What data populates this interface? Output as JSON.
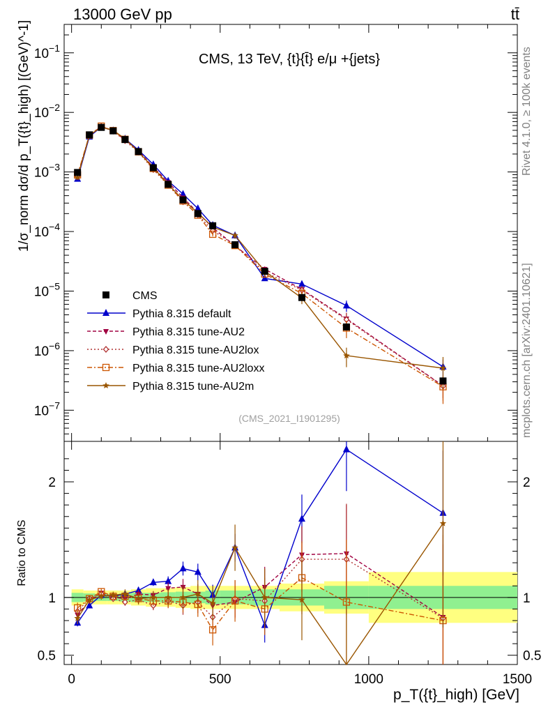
{
  "header": {
    "left": "13000 GeV pp",
    "right": "tt̄"
  },
  "side_labels": {
    "rivet": "Rivet 4.1.0, ≥ 100k events",
    "mcplots": "mcplots.cern.ch [arXiv:2401.10621]"
  },
  "watermark": "(CMS_2021_I1901295)",
  "chart_data": {
    "type": "line",
    "title": "CMS, 13 TeV, {t}{t̄} e/μ +{jets}",
    "xlabel": "p_T({t}_high) [GeV]",
    "ylabel": "1/σ_norm dσ/d p_T({t}_high) [(GeV)^-1]",
    "ratio_ylabel": "Ratio to CMS",
    "yscale": "log",
    "ylim": [
      3e-08,
      0.3
    ],
    "xlim": [
      -25,
      1500
    ],
    "ratio_ylim": [
      0.42,
      2.35
    ],
    "legend_position": "middle-left",
    "x_ticks": [
      0,
      500,
      1000,
      1500
    ],
    "y_ticks": [
      {
        "value": 1e-07,
        "base": "10",
        "exp": "−7"
      },
      {
        "value": 1e-06,
        "base": "10",
        "exp": "−6"
      },
      {
        "value": 1e-05,
        "base": "10",
        "exp": "−5"
      },
      {
        "value": 0.0001,
        "base": "10",
        "exp": "−4"
      },
      {
        "value": 0.001,
        "base": "10",
        "exp": "−3"
      },
      {
        "value": 0.01,
        "base": "10",
        "exp": "−2"
      },
      {
        "value": 0.1,
        "base": "10",
        "exp": "−1"
      }
    ],
    "ratio_ticks": [
      0.5,
      1,
      2
    ],
    "x": [
      20,
      60,
      100,
      140,
      180,
      225,
      275,
      325,
      375,
      425,
      475,
      550,
      650,
      775,
      925,
      1250
    ],
    "x_low": [
      0,
      40,
      80,
      120,
      160,
      200,
      250,
      300,
      350,
      400,
      450,
      500,
      600,
      700,
      850,
      1000
    ],
    "x_high": [
      40,
      80,
      120,
      160,
      200,
      250,
      300,
      350,
      400,
      450,
      500,
      600,
      700,
      850,
      1000,
      1500
    ],
    "data": {
      "name": "CMS",
      "values": [
        0.00098,
        0.0042,
        0.0056,
        0.0049,
        0.0035,
        0.0022,
        0.00118,
        0.00062,
        0.00034,
        0.0002,
        0.000125,
        6e-05,
        2.15e-05,
        7.8e-06,
        2.5e-06,
        3.1e-07
      ],
      "band_inner": [
        0.04,
        0.035,
        0.03,
        0.03,
        0.035,
        0.04,
        0.04,
        0.045,
        0.05,
        0.05,
        0.06,
        0.06,
        0.07,
        0.07,
        0.1,
        0.1
      ],
      "band_outer": [
        0.07,
        0.06,
        0.06,
        0.06,
        0.06,
        0.07,
        0.08,
        0.08,
        0.09,
        0.1,
        0.1,
        0.1,
        0.1,
        0.12,
        0.14,
        0.22
      ]
    },
    "series": [
      {
        "name": "Pythia 8.315 default",
        "color": "#0000cc",
        "dash": "",
        "marker": "triangle-up",
        "ratio": [
          0.78,
          0.93,
          1.02,
          1.01,
          1.03,
          1.06,
          1.13,
          1.14,
          1.25,
          1.22,
          1.02,
          1.43,
          0.76,
          1.68,
          2.28,
          1.73
        ],
        "err": [
          0.05,
          0.03,
          0.03,
          0.03,
          0.04,
          0.05,
          0.05,
          0.07,
          0.1,
          0.12,
          0.15,
          0.2,
          0.25,
          0.35,
          0.6,
          0.9
        ]
      },
      {
        "name": "Pythia 8.315 tune-AU2",
        "color": "#a00040",
        "dash": "5,3",
        "marker": "triangle-down",
        "ratio": [
          0.85,
          0.97,
          1.04,
          1.0,
          0.99,
          1.03,
          1.02,
          1.08,
          1.09,
          1.03,
          0.93,
          0.96,
          1.09,
          1.37,
          1.38,
          0.83
        ],
        "err": [
          0.05,
          0.03,
          0.03,
          0.03,
          0.04,
          0.05,
          0.05,
          0.07,
          0.1,
          0.12,
          0.15,
          0.2,
          0.25,
          0.35,
          0.6,
          0.9
        ]
      },
      {
        "name": "Pythia 8.315 tune-AU2lox",
        "color": "#b03030",
        "dash": "2,3",
        "marker": "diamond",
        "ratio": [
          0.88,
          0.99,
          1.03,
          0.99,
          0.96,
          0.98,
          0.93,
          0.97,
          0.93,
          0.96,
          0.83,
          0.99,
          0.97,
          1.33,
          1.33,
          0.82
        ],
        "err": [
          0.05,
          0.03,
          0.03,
          0.03,
          0.04,
          0.05,
          0.05,
          0.07,
          0.1,
          0.12,
          0.15,
          0.2,
          0.25,
          0.35,
          0.6,
          0.9
        ]
      },
      {
        "name": "Pythia 8.315 tune-AU2loxx",
        "color": "#cc5500",
        "dash": "7,3,2,3",
        "marker": "square-open",
        "ratio": [
          0.91,
          0.99,
          1.05,
          1.01,
          1.01,
          0.99,
          0.97,
          0.97,
          0.96,
          0.94,
          0.72,
          0.97,
          0.9,
          1.17,
          0.96,
          0.8
        ],
        "err": [
          0.05,
          0.03,
          0.03,
          0.03,
          0.04,
          0.05,
          0.05,
          0.07,
          0.1,
          0.12,
          0.15,
          0.2,
          0.25,
          0.35,
          0.6,
          0.9
        ]
      },
      {
        "name": "Pythia 8.315 tune-AU2m",
        "color": "#995500",
        "dash": "",
        "marker": "star",
        "ratio": [
          0.82,
          0.98,
          1.01,
          1.02,
          1.03,
          0.99,
          1.0,
          1.0,
          1.0,
          1.03,
          0.95,
          1.43,
          1.0,
          0.98,
          0.33,
          1.64
        ],
        "err": [
          0.05,
          0.03,
          0.03,
          0.03,
          0.04,
          0.05,
          0.05,
          0.07,
          0.1,
          0.12,
          0.15,
          0.2,
          0.25,
          0.35,
          0.6,
          0.9
        ]
      }
    ]
  }
}
